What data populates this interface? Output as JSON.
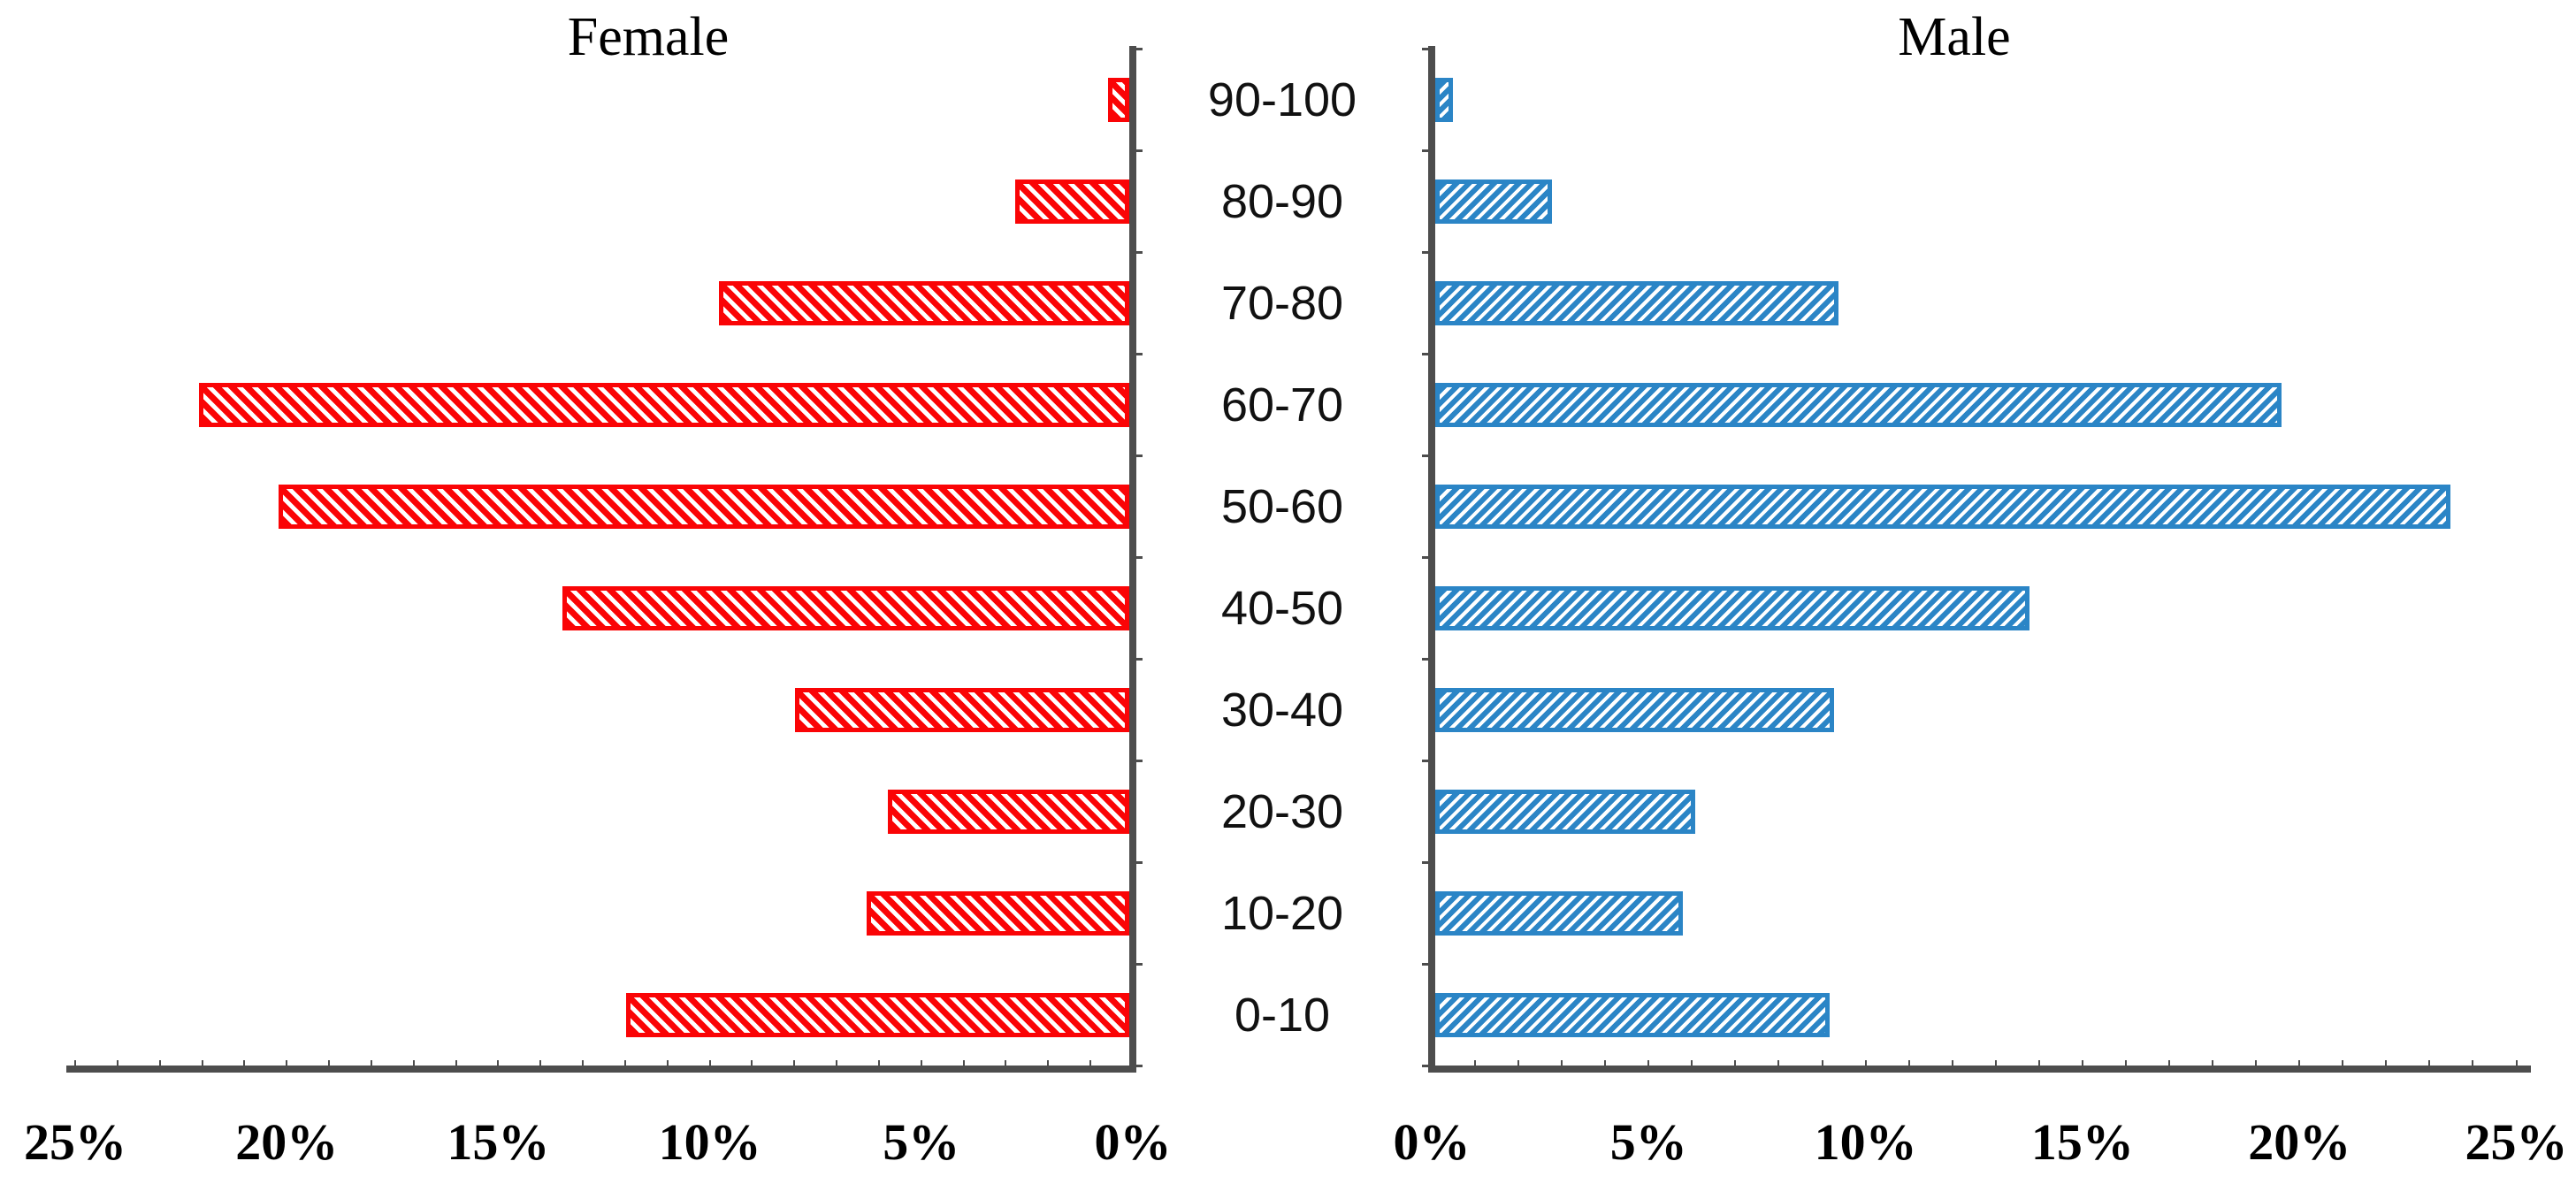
{
  "titles": {
    "left": "Female",
    "right": "Male"
  },
  "chart_data": {
    "type": "bar",
    "subtype": "population_pyramid",
    "title_left": "Female",
    "title_right": "Male",
    "categories_top_to_bottom": [
      "90-100",
      "80-90",
      "70-80",
      "60-70",
      "50-60",
      "40-50",
      "30-40",
      "20-30",
      "10-20",
      "0-10"
    ],
    "series": [
      {
        "name": "Female",
        "side": "left",
        "color": "#FA0406",
        "hatch": "diagonal-down",
        "values_pct": [
          0.5,
          2.7,
          9.7,
          22.0,
          20.1,
          13.4,
          7.9,
          5.7,
          6.2,
          11.9
        ]
      },
      {
        "name": "Male",
        "side": "right",
        "color": "#2B85C6",
        "hatch": "diagonal-up",
        "values_pct": [
          0.4,
          2.7,
          9.3,
          19.5,
          23.4,
          13.7,
          9.2,
          6.0,
          5.7,
          9.1
        ]
      }
    ],
    "x_axis": {
      "min_pct": 0,
      "max_pct": 25,
      "tick_step_pct": 5,
      "left_tick_labels": [
        "25%",
        "20%",
        "15%",
        "10%",
        "5%",
        "0%"
      ],
      "right_tick_labels": [
        "0%",
        "5%",
        "10%",
        "15%",
        "20%",
        "25%"
      ]
    },
    "axis_color": "#4D4D4D",
    "background": "#FFFFFF",
    "legend": "none",
    "gridlines": "none"
  }
}
